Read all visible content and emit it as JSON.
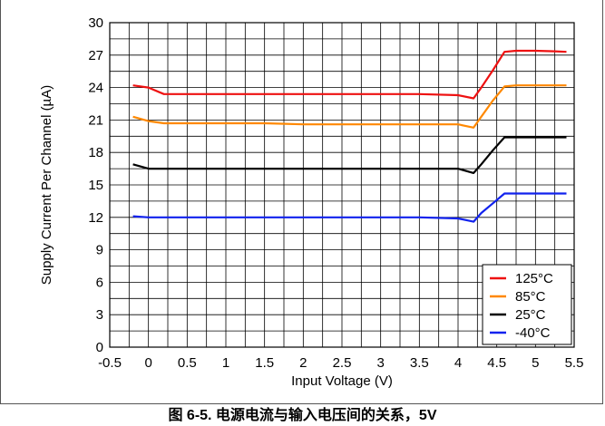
{
  "caption": "图 6-5. 电源电流与输入电压间的关系，5V",
  "chart_data": {
    "type": "line",
    "title": "",
    "xlabel": "Input Voltage (V)",
    "ylabel": "Supply Current Per Channel (µA)",
    "xlim": [
      -0.5,
      5.5
    ],
    "ylim": [
      0,
      30
    ],
    "xticks": [
      -0.5,
      0,
      0.5,
      1,
      1.5,
      2,
      2.5,
      3,
      3.5,
      4,
      4.5,
      5,
      5.5
    ],
    "xtick_labels": [
      "-0.5",
      "0",
      "0.5",
      "1",
      "1.5",
      "2",
      "2.5",
      "3",
      "3.5",
      "4",
      "4.5",
      "5",
      "5.5"
    ],
    "yticks": [
      0,
      3,
      6,
      9,
      12,
      15,
      18,
      21,
      24,
      27,
      30
    ],
    "ytick_labels": [
      "0",
      "3",
      "6",
      "9",
      "12",
      "15",
      "18",
      "21",
      "24",
      "27",
      "30"
    ],
    "grid": true,
    "legend_position": "bottom-right",
    "series": [
      {
        "name": "125°C",
        "color": "#ee1111",
        "x": [
          -0.2,
          0,
          0.2,
          0.5,
          1,
          1.5,
          2,
          2.5,
          3,
          3.5,
          4,
          4.2,
          4.3,
          4.45,
          4.6,
          4.75,
          5,
          5.25,
          5.4
        ],
        "y": [
          24.2,
          24.0,
          23.4,
          23.4,
          23.4,
          23.4,
          23.4,
          23.4,
          23.4,
          23.4,
          23.3,
          23.0,
          24.0,
          25.6,
          27.3,
          27.4,
          27.4,
          27.35,
          27.3
        ]
      },
      {
        "name": "85°C",
        "color": "#ff8800",
        "x": [
          -0.2,
          0,
          0.2,
          0.5,
          1,
          1.5,
          2,
          2.5,
          3,
          3.5,
          4,
          4.2,
          4.3,
          4.45,
          4.6,
          4.75,
          5,
          5.25,
          5.4
        ],
        "y": [
          21.3,
          20.9,
          20.7,
          20.7,
          20.7,
          20.7,
          20.6,
          20.6,
          20.6,
          20.6,
          20.6,
          20.3,
          21.3,
          22.8,
          24.1,
          24.2,
          24.2,
          24.2,
          24.2
        ]
      },
      {
        "name": "25°C",
        "color": "#000000",
        "x": [
          -0.2,
          0,
          0.2,
          0.5,
          1,
          1.5,
          2,
          2.5,
          3,
          3.5,
          4,
          4.2,
          4.3,
          4.45,
          4.6,
          4.75,
          5,
          5.25,
          5.4
        ],
        "y": [
          16.9,
          16.5,
          16.5,
          16.5,
          16.5,
          16.5,
          16.5,
          16.5,
          16.5,
          16.5,
          16.5,
          16.1,
          16.9,
          18.2,
          19.4,
          19.4,
          19.4,
          19.4,
          19.4
        ]
      },
      {
        "name": "-40°C",
        "color": "#1122ee",
        "x": [
          -0.2,
          0,
          0.2,
          0.5,
          1,
          1.5,
          2,
          2.5,
          3,
          3.5,
          4,
          4.2,
          4.3,
          4.45,
          4.6,
          4.75,
          5,
          5.25,
          5.4
        ],
        "y": [
          12.1,
          12.0,
          12.0,
          12.0,
          12.0,
          12.0,
          12.0,
          12.0,
          12.0,
          12.0,
          11.9,
          11.6,
          12.4,
          13.3,
          14.2,
          14.2,
          14.2,
          14.2,
          14.2
        ]
      }
    ]
  }
}
